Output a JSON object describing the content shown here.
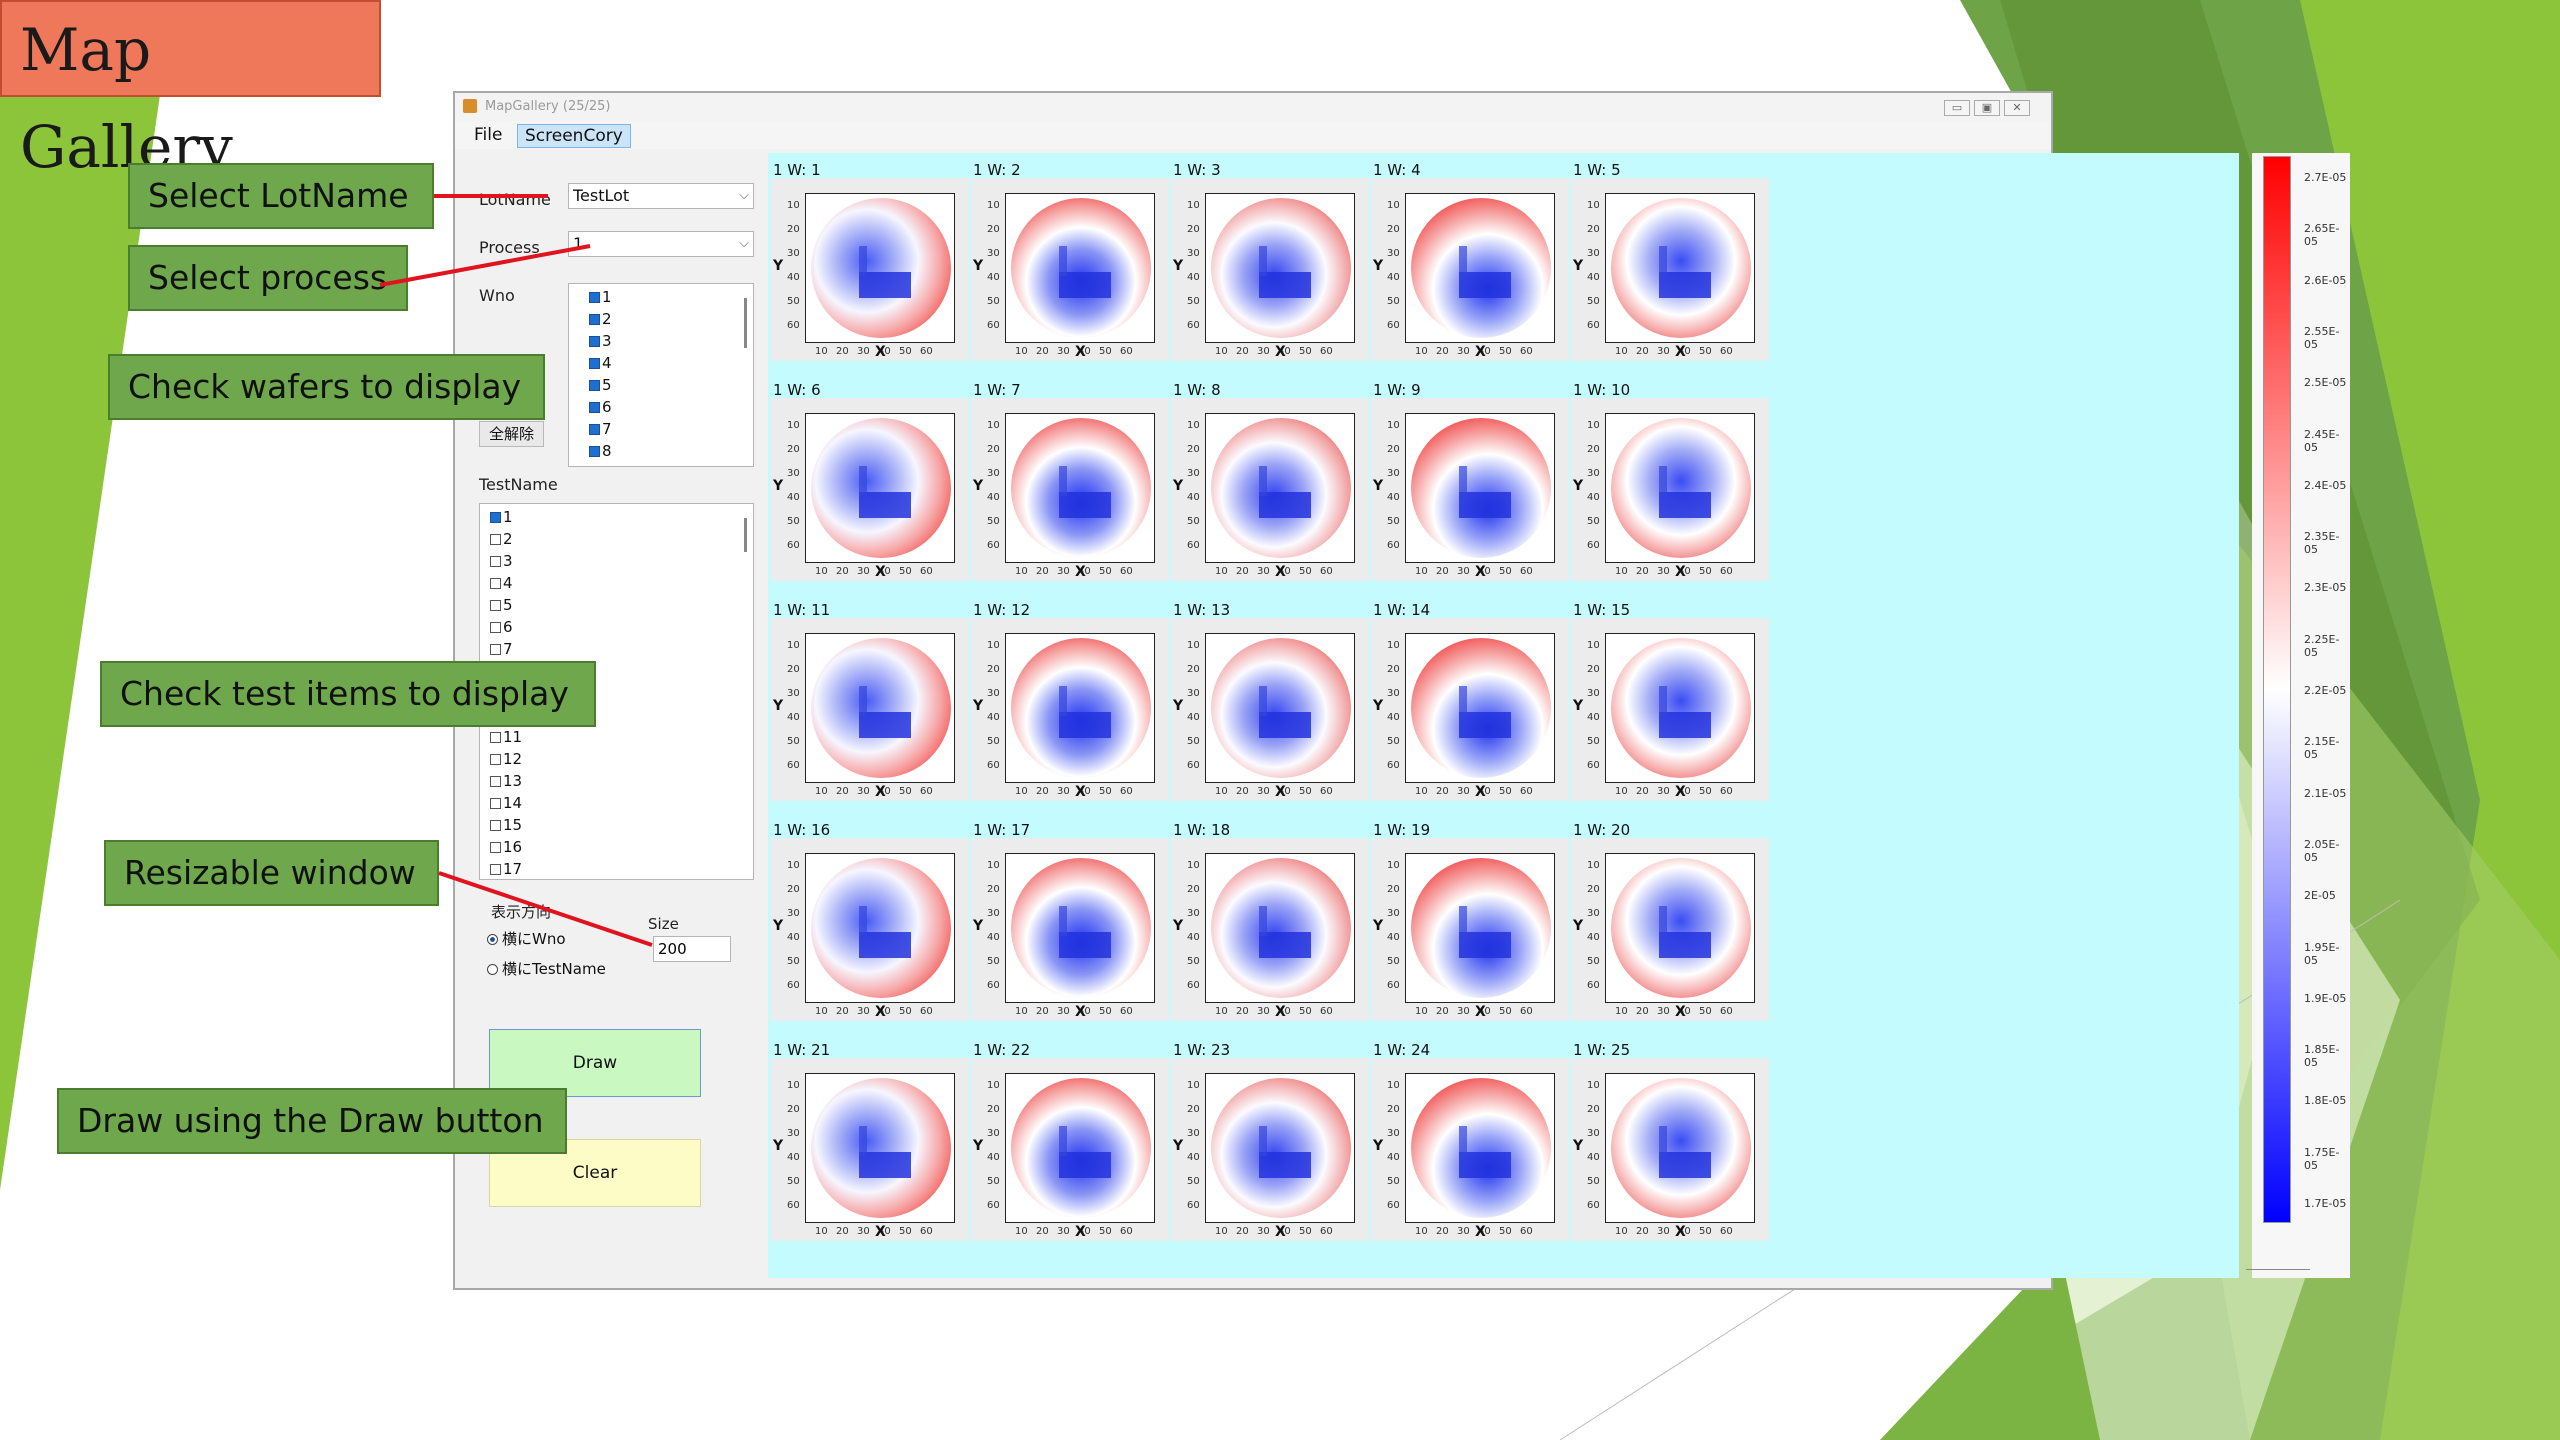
{
  "slide": {
    "title": "Map Gallery",
    "callouts": [
      "Select LotName",
      "Select process",
      "Check wafers to display",
      "Check test items to display",
      "Resizable window",
      "Draw using the Draw button"
    ]
  },
  "window": {
    "title": "MapGallery  (25/25)",
    "menu": [
      "File",
      "ScreenCory"
    ],
    "lot_label": "LotName",
    "lot_value": "TestLot",
    "process_label": "Process",
    "process_value": "1",
    "wno_label": "Wno",
    "wno_items": [
      "1",
      "2",
      "3",
      "4",
      "5",
      "6",
      "7",
      "8"
    ],
    "clear_all_label": "全解除",
    "testname_label": "TestName",
    "testname_items": [
      "1",
      "2",
      "3",
      "4",
      "5",
      "6",
      "7",
      "11",
      "12",
      "13",
      "14",
      "15",
      "16",
      "17"
    ],
    "display_direction_label": "表示方向",
    "radio_wno": "横にWno",
    "radio_testname": "横にTestName",
    "size_label": "Size",
    "size_value": "200",
    "draw_label": "Draw",
    "clear_label": "Clear"
  },
  "gallery": {
    "captions": [
      "1 W: 1",
      "1 W: 2",
      "1 W: 3",
      "1 W: 4",
      "1 W: 5",
      "1 W: 6",
      "1 W: 7",
      "1 W: 8",
      "1 W: 9",
      "1 W: 10",
      "1 W: 11",
      "1 W: 12",
      "1 W: 13",
      "1 W: 14",
      "1 W: 15",
      "1 W: 16",
      "1 W: 17",
      "1 W: 18",
      "1 W: 19",
      "1 W: 20",
      "1 W: 21",
      "1 W: 22",
      "1 W: 23",
      "1 W: 24",
      "1 W: 25"
    ],
    "y_ticks": [
      "10",
      "20",
      "30",
      "40",
      "50",
      "60"
    ],
    "x_ticks": [
      "10",
      "20",
      "30",
      "40",
      "50",
      "60"
    ],
    "x_axis": "X",
    "y_axis": "Y"
  },
  "colorbar": {
    "labels": [
      "2.7E-05",
      "2.65E-05",
      "2.6E-05",
      "2.55E-05",
      "2.5E-05",
      "2.45E-05",
      "2.4E-05",
      "2.35E-05",
      "2.3E-05",
      "2.25E-05",
      "2.2E-05",
      "2.15E-05",
      "2.1E-05",
      "2.05E-05",
      "2E-05",
      "1.95E-05",
      "1.9E-05",
      "1.85E-05",
      "1.8E-05",
      "1.75E-05",
      "1.7E-05"
    ],
    "high_color": "#ff0000",
    "mid_color": "#ffffff",
    "low_color": "#0000ff"
  }
}
